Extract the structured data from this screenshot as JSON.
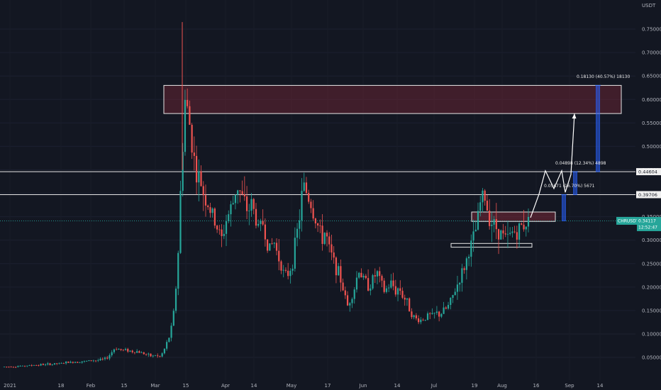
{
  "chart_data": {
    "type": "candlestick",
    "currency_label": "USDT",
    "ylim": [
      0.0,
      0.8
    ],
    "y_ticks": [
      "0.05000",
      "0.10000",
      "0.15000",
      "0.20000",
      "0.25000",
      "0.30000",
      "0.35000",
      "0.40000",
      "0.45000",
      "0.50000",
      "0.55000",
      "0.60000",
      "0.65000",
      "0.70000",
      "0.75000"
    ],
    "x_ticks": [
      "2021",
      "18",
      "Feb",
      "15",
      "Mar",
      "15",
      "Apr",
      "14",
      "May",
      "17",
      "Jun",
      "14",
      "Jul",
      "19",
      "Aug",
      "16",
      "Sep",
      "14"
    ],
    "symbol": "CHRUSDT",
    "last_price": "0.34117",
    "countdown": "12:52:47",
    "levels": [
      {
        "value": 0.44604,
        "label": "0.44604"
      },
      {
        "value": 0.39706,
        "label": "0.39706"
      }
    ],
    "zones": [
      {
        "low": 0.57,
        "high": 0.63,
        "name": "supply-zone"
      },
      {
        "low": 0.34,
        "high": 0.36,
        "name": "resistance-zone"
      },
      {
        "low": 0.285,
        "high": 0.293,
        "name": "support-zone"
      }
    ],
    "annotations": [
      "0.18130 (40.57%) 18130",
      "0.04898 (12.34%) 4898",
      "0.05671 (16.70%) 5671"
    ],
    "projection_path": [
      [
        0.34,
        0.348
      ],
      [
        0.343,
        0.398
      ],
      [
        0.347,
        0.448
      ],
      [
        0.352,
        0.41
      ],
      [
        0.356,
        0.448
      ],
      [
        0.358,
        0.402
      ],
      [
        0.361,
        0.44
      ],
      [
        0.368,
        0.57
      ]
    ],
    "price_path": [
      0.03,
      0.03,
      0.031,
      0.03,
      0.032,
      0.031,
      0.033,
      0.032,
      0.034,
      0.033,
      0.035,
      0.034,
      0.036,
      0.035,
      0.037,
      0.036,
      0.038,
      0.04,
      0.039,
      0.041,
      0.04,
      0.042,
      0.041,
      0.043,
      0.044,
      0.043,
      0.045,
      0.046,
      0.05,
      0.06,
      0.07,
      0.068,
      0.065,
      0.066,
      0.064,
      0.062,
      0.063,
      0.06,
      0.058,
      0.055,
      0.052,
      0.055,
      0.05,
      0.06,
      0.08,
      0.1,
      0.15,
      0.25,
      0.45,
      0.6,
      0.56,
      0.5,
      0.44,
      0.43,
      0.4,
      0.38,
      0.36,
      0.34,
      0.32,
      0.3,
      0.34,
      0.36,
      0.38,
      0.42,
      0.4,
      0.38,
      0.36,
      0.38,
      0.35,
      0.32,
      0.34,
      0.3,
      0.28,
      0.3,
      0.27,
      0.25,
      0.22,
      0.23,
      0.25,
      0.3,
      0.35,
      0.42,
      0.4,
      0.38,
      0.35,
      0.33,
      0.3,
      0.32,
      0.28,
      0.26,
      0.24,
      0.22,
      0.19,
      0.16,
      0.18,
      0.2,
      0.24,
      0.22,
      0.21,
      0.2,
      0.22,
      0.23,
      0.21,
      0.19,
      0.2,
      0.21,
      0.19,
      0.2,
      0.18,
      0.17,
      0.15,
      0.135,
      0.13,
      0.13,
      0.135,
      0.14,
      0.138,
      0.145,
      0.14,
      0.15,
      0.155,
      0.17,
      0.19,
      0.21,
      0.23,
      0.25,
      0.28,
      0.3,
      0.33,
      0.38,
      0.4,
      0.36,
      0.34,
      0.33,
      0.32,
      0.31,
      0.3,
      0.31,
      0.32,
      0.315,
      0.33,
      0.335,
      0.341
    ]
  }
}
